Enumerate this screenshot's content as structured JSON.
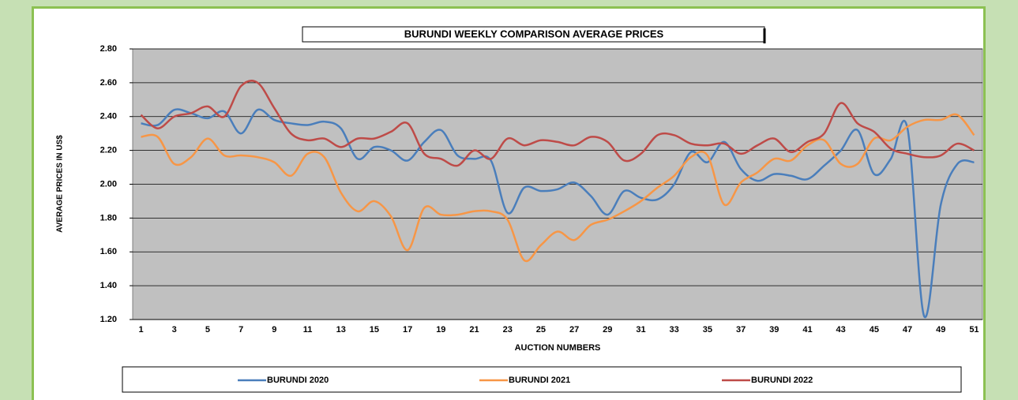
{
  "chart_data": {
    "type": "line",
    "title": "BURUNDI WEEKLY COMPARISON AVERAGE PRICES",
    "x_label": "AUCTION NUMBERS",
    "y_label": "AVERAGE PRICES IN US$",
    "categories": [
      "1",
      null,
      "3",
      null,
      "5",
      null,
      "7",
      null,
      "9",
      null,
      "11",
      null,
      "13",
      null,
      "15",
      null,
      "17",
      null,
      "19",
      null,
      "21",
      null,
      "23",
      null,
      "25",
      null,
      "27",
      null,
      "29",
      null,
      "31",
      null,
      "33",
      null,
      "35",
      null,
      "37",
      null,
      "39",
      null,
      "41",
      null,
      "43",
      null,
      "45",
      null,
      "47",
      null,
      "49",
      null,
      "51"
    ],
    "ylim": [
      1.2,
      2.8
    ],
    "yticks": [
      {
        "value": 1.2,
        "label": "1.20"
      },
      {
        "value": 1.4,
        "label": "1.40"
      },
      {
        "value": 1.6,
        "label": "1.60"
      },
      {
        "value": 1.8,
        "label": "1.80"
      },
      {
        "value": 2.0,
        "label": "2.00"
      },
      {
        "value": 2.2,
        "label": "2.20"
      },
      {
        "value": 2.4,
        "label": "2.40"
      },
      {
        "value": 2.6,
        "label": "2.60"
      },
      {
        "value": 2.8,
        "label": "2.80"
      }
    ],
    "grid": true,
    "legend": "bottom",
    "series": [
      {
        "name": "BURUNDI 2020",
        "color": "#4a7ebb",
        "values": [
          2.36,
          2.35,
          2.44,
          2.42,
          2.39,
          2.43,
          2.3,
          2.44,
          2.38,
          2.36,
          2.35,
          2.37,
          2.33,
          2.15,
          2.22,
          2.2,
          2.14,
          2.25,
          2.32,
          2.17,
          2.15,
          2.14,
          1.83,
          1.98,
          1.96,
          1.97,
          2.01,
          1.93,
          1.82,
          1.96,
          1.92,
          1.91,
          2.0,
          2.19,
          2.13,
          2.25,
          2.09,
          2.02,
          2.06,
          2.05,
          2.03,
          2.11,
          2.2,
          2.32,
          2.06,
          2.15,
          2.33,
          1.22,
          1.88,
          2.12,
          2.13
        ]
      },
      {
        "name": "BURUNDI 2021",
        "color": "#f79646",
        "values": [
          2.28,
          2.28,
          2.12,
          2.16,
          2.27,
          2.17,
          2.17,
          2.16,
          2.13,
          2.05,
          2.18,
          2.16,
          1.95,
          1.84,
          1.9,
          1.81,
          1.61,
          1.86,
          1.82,
          1.82,
          1.84,
          1.84,
          1.79,
          1.55,
          1.64,
          1.72,
          1.67,
          1.76,
          1.79,
          1.84,
          1.9,
          1.98,
          2.05,
          2.16,
          2.17,
          1.88,
          2.01,
          2.07,
          2.15,
          2.14,
          2.23,
          2.26,
          2.12,
          2.12,
          2.27,
          2.26,
          2.34,
          2.38,
          2.38,
          2.41,
          2.29
        ]
      },
      {
        "name": "BURUNDI 2022",
        "color": "#be4b48",
        "values": [
          2.41,
          2.33,
          2.4,
          2.42,
          2.46,
          2.4,
          2.58,
          2.6,
          2.45,
          2.3,
          2.26,
          2.27,
          2.22,
          2.27,
          2.27,
          2.31,
          2.36,
          2.18,
          2.15,
          2.11,
          2.2,
          2.15,
          2.27,
          2.23,
          2.26,
          2.25,
          2.23,
          2.28,
          2.25,
          2.14,
          2.18,
          2.29,
          2.29,
          2.24,
          2.23,
          2.24,
          2.18,
          2.23,
          2.27,
          2.19,
          2.25,
          2.3,
          2.48,
          2.36,
          2.31,
          2.21,
          2.18,
          2.16,
          2.17,
          2.24,
          2.2
        ]
      }
    ]
  }
}
